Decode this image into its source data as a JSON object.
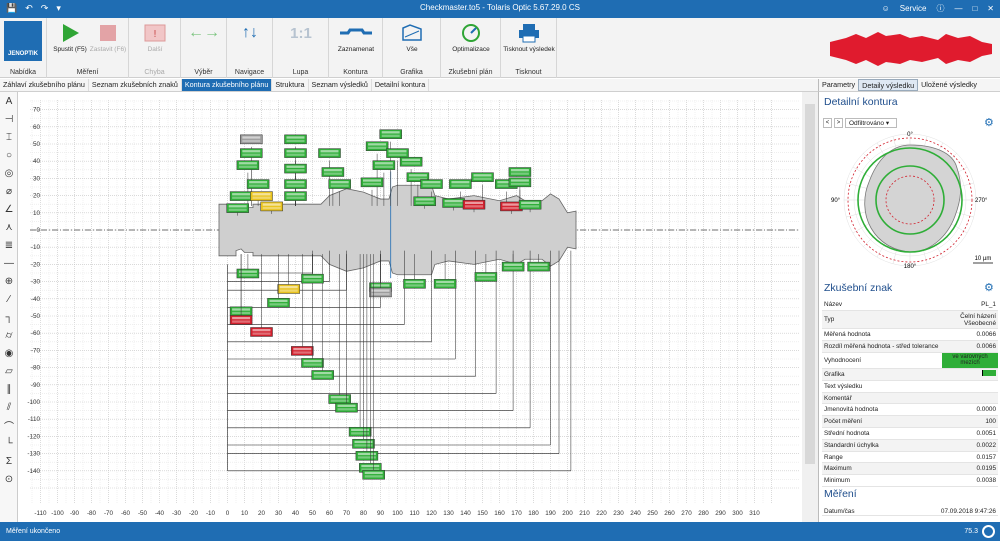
{
  "window": {
    "title": "Checkmaster.to5 - Tolaris Optic 5.67.29.0 CS",
    "service_label": "Service"
  },
  "logo_text": "JENOPTIK",
  "ribbon": {
    "groups": [
      {
        "label": "Nabídka"
      },
      {
        "label": "Měření"
      },
      {
        "label": "Chyba"
      },
      {
        "label": "Výběr"
      },
      {
        "label": "Navigace"
      },
      {
        "label": "Lupa"
      },
      {
        "label": "Kontura"
      },
      {
        "label": "Grafika"
      },
      {
        "label": "Zkušební plán"
      },
      {
        "label": "Tisknout"
      }
    ],
    "buttons": {
      "start": "Spustit (F5)",
      "stop": "Zastavit (F6)",
      "next": "Další",
      "zoom": "1:1",
      "record": "Zaznamenat",
      "all": "Vše",
      "optimize": "Optimalizace",
      "print": "Tisknout výsledek"
    }
  },
  "tabs": [
    "Záhlaví zkušebního plánu",
    "Seznam zkušebních znaků",
    "Kontura zkušebního plánu",
    "Struktura",
    "Seznam výsledků",
    "Detailní kontura"
  ],
  "active_tab": 2,
  "right_tabs": [
    "Parametry",
    "Detaily výsledku",
    "Uložené výsledky"
  ],
  "right_active_tab": 1,
  "detail_contour": {
    "title": "Detailní kontura",
    "filter": "Odfiltrováno",
    "angle_labels": [
      "0°",
      "90°",
      "180°",
      "270°"
    ],
    "scale_label": "10 µm"
  },
  "test_feature": {
    "title": "Zkušební znak",
    "rows": [
      {
        "k": "Název",
        "v": "PL_1"
      },
      {
        "k": "Typ",
        "v": "Čelní házení Všeobecné"
      },
      {
        "k": "Měřená hodnota",
        "v": "0.0066"
      },
      {
        "k": "Rozdíl měřená hodnota - střed tolerance",
        "v": "0.0066"
      },
      {
        "k": "Vyhodnocení",
        "v": "ve varovných mezích"
      },
      {
        "k": "Grafika",
        "v": ""
      },
      {
        "k": "Text výsledku",
        "v": ""
      },
      {
        "k": "Komentář",
        "v": ""
      },
      {
        "k": "Jmenovitá hodnota",
        "v": "0.0000"
      },
      {
        "k": "Počet měření",
        "v": "100"
      },
      {
        "k": "Střední hodnota",
        "v": "0.0051"
      },
      {
        "k": "Standardní úchylka",
        "v": "0.0022"
      },
      {
        "k": "Range",
        "v": "0.0157"
      },
      {
        "k": "Maximum",
        "v": "0.0195"
      },
      {
        "k": "Minimum",
        "v": "0.0038"
      }
    ]
  },
  "measurement": {
    "title": "Měření",
    "date_label": "Datum/čas",
    "date_value": "07.09.2018 9:47:26"
  },
  "status": {
    "left": "Měření ukončeno",
    "right": "75.3"
  },
  "plot": {
    "x_ticks": [
      -110,
      -100,
      -90,
      -80,
      -70,
      -60,
      -50,
      -40,
      -30,
      -20,
      -10,
      0,
      10,
      20,
      30,
      40,
      50,
      60,
      70,
      80,
      90,
      100,
      110,
      120,
      130,
      140,
      150,
      160,
      170,
      180,
      190,
      200,
      210,
      220,
      230,
      240,
      250,
      260,
      270,
      280,
      290,
      300,
      310
    ],
    "y_ticks": [
      70,
      60,
      50,
      40,
      30,
      20,
      10,
      0,
      -10,
      -20,
      -30,
      -40,
      -50,
      -60,
      -70,
      -80,
      -90,
      -100,
      -110,
      -120,
      -130,
      -140
    ],
    "colors": {
      "ok": "#2fae38",
      "warn": "#e8c21c",
      "err": "#d21f2c",
      "part": "#cfcfcf"
    },
    "labels_top": [
      {
        "x": 14,
        "y": 53,
        "s": "gray"
      },
      {
        "x": 40,
        "y": 53,
        "s": "ok"
      },
      {
        "x": 96,
        "y": 56,
        "s": "ok"
      },
      {
        "x": 14,
        "y": 45,
        "s": "ok"
      },
      {
        "x": 40,
        "y": 45,
        "s": "ok"
      },
      {
        "x": 60,
        "y": 45,
        "s": "ok"
      },
      {
        "x": 88,
        "y": 49,
        "s": "ok"
      },
      {
        "x": 100,
        "y": 45,
        "s": "ok"
      },
      {
        "x": 108,
        "y": 40,
        "s": "ok"
      },
      {
        "x": 12,
        "y": 38,
        "s": "ok"
      },
      {
        "x": 40,
        "y": 36,
        "s": "ok"
      },
      {
        "x": 62,
        "y": 34,
        "s": "ok"
      },
      {
        "x": 92,
        "y": 38,
        "s": "ok"
      },
      {
        "x": 112,
        "y": 31,
        "s": "ok"
      },
      {
        "x": 150,
        "y": 31,
        "s": "ok"
      },
      {
        "x": 172,
        "y": 34,
        "s": "ok"
      },
      {
        "x": 18,
        "y": 27,
        "s": "ok"
      },
      {
        "x": 40,
        "y": 27,
        "s": "ok"
      },
      {
        "x": 66,
        "y": 27,
        "s": "ok"
      },
      {
        "x": 85,
        "y": 28,
        "s": "ok"
      },
      {
        "x": 120,
        "y": 27,
        "s": "ok"
      },
      {
        "x": 137,
        "y": 27,
        "s": "ok"
      },
      {
        "x": 164,
        "y": 27,
        "s": "ok"
      },
      {
        "x": 172,
        "y": 28,
        "s": "ok"
      },
      {
        "x": 8,
        "y": 20,
        "s": "ok"
      },
      {
        "x": 20,
        "y": 20,
        "s": "warn"
      },
      {
        "x": 40,
        "y": 20,
        "s": "ok"
      },
      {
        "x": 116,
        "y": 17,
        "s": "ok"
      },
      {
        "x": 133,
        "y": 16,
        "s": "ok"
      },
      {
        "x": 145,
        "y": 15,
        "s": "err"
      },
      {
        "x": 167,
        "y": 14,
        "s": "err"
      },
      {
        "x": 178,
        "y": 15,
        "s": "ok"
      },
      {
        "x": 6,
        "y": 13,
        "s": "ok"
      },
      {
        "x": 26,
        "y": 14,
        "s": "warn"
      }
    ],
    "labels_bottom": [
      {
        "x": 12,
        "y": -25,
        "s": "ok"
      },
      {
        "x": 110,
        "y": -31,
        "s": "ok"
      },
      {
        "x": 128,
        "y": -31,
        "s": "ok"
      },
      {
        "x": 152,
        "y": -27,
        "s": "ok"
      },
      {
        "x": 168,
        "y": -21,
        "s": "ok"
      },
      {
        "x": 183,
        "y": -21,
        "s": "ok"
      },
      {
        "x": 36,
        "y": -34,
        "s": "warn"
      },
      {
        "x": 90,
        "y": -33,
        "s": "ok"
      },
      {
        "x": 90,
        "y": -36,
        "s": "gray"
      },
      {
        "x": 8,
        "y": -47,
        "s": "ok"
      },
      {
        "x": 8,
        "y": -52,
        "s": "err"
      },
      {
        "x": 20,
        "y": -59,
        "s": "err"
      },
      {
        "x": 44,
        "y": -70,
        "s": "err"
      },
      {
        "x": 50,
        "y": -77,
        "s": "ok"
      },
      {
        "x": 56,
        "y": -84,
        "s": "ok"
      },
      {
        "x": 66,
        "y": -98,
        "s": "ok"
      },
      {
        "x": 70,
        "y": -103,
        "s": "ok"
      },
      {
        "x": 78,
        "y": -117,
        "s": "ok"
      },
      {
        "x": 80,
        "y": -124,
        "s": "ok"
      },
      {
        "x": 82,
        "y": -131,
        "s": "ok"
      },
      {
        "x": 84,
        "y": -138,
        "s": "ok"
      },
      {
        "x": 86,
        "y": -142,
        "s": "ok"
      },
      {
        "x": 30,
        "y": -42,
        "s": "ok"
      },
      {
        "x": 50,
        "y": -28,
        "s": "ok"
      }
    ]
  }
}
